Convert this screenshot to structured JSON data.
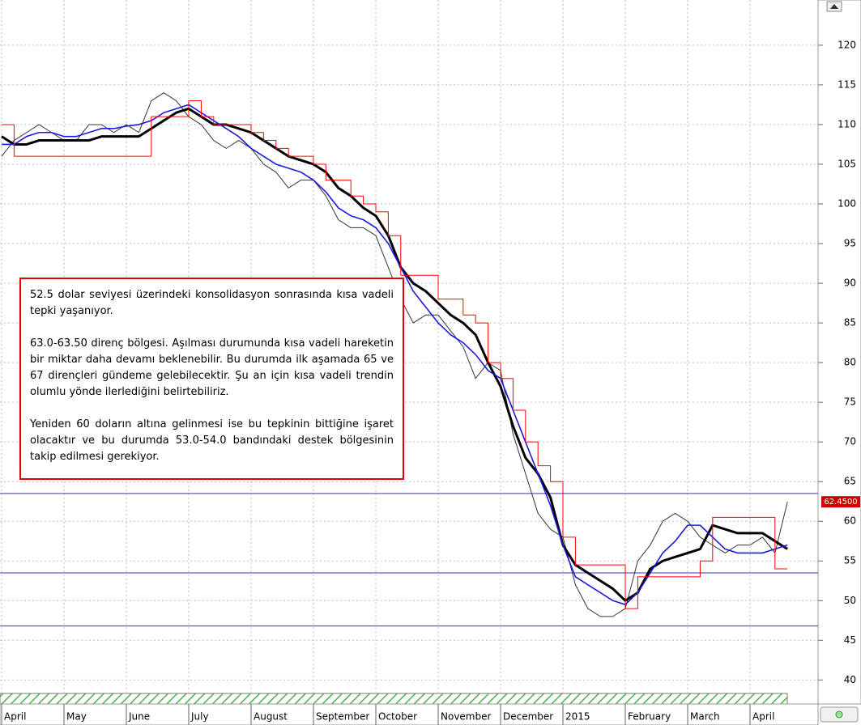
{
  "chart_data": {
    "type": "line",
    "categories": [
      "April",
      null,
      null,
      null,
      null,
      "May",
      null,
      null,
      null,
      null,
      "June",
      null,
      null,
      null,
      null,
      "July",
      null,
      null,
      null,
      null,
      "August",
      null,
      null,
      null,
      null,
      "September",
      null,
      null,
      null,
      null,
      "October",
      null,
      null,
      null,
      null,
      "November",
      null,
      null,
      null,
      null,
      "December",
      null,
      null,
      null,
      null,
      "2015",
      null,
      null,
      null,
      null,
      "February",
      null,
      null,
      null,
      null,
      "March",
      null,
      null,
      null,
      null,
      "April",
      null,
      null,
      null
    ],
    "series": [
      {
        "name": "price",
        "color": "#333333",
        "values": [
          106,
          108,
          109,
          110,
          109,
          108,
          108,
          110,
          110,
          109,
          110,
          109,
          113,
          114,
          113,
          111,
          110,
          108,
          107,
          108,
          107,
          105,
          104,
          102,
          103,
          103,
          101,
          98,
          97,
          97,
          96,
          92,
          88,
          85,
          86,
          86,
          84,
          82,
          78,
          80,
          79,
          71,
          66,
          61,
          59,
          58,
          52,
          49,
          48,
          48,
          49,
          55,
          57,
          60,
          61,
          60,
          58,
          57,
          56,
          57,
          57,
          58,
          56,
          62.45
        ]
      },
      {
        "name": "black-ma",
        "color": "#000000",
        "values": [
          108.5,
          107.5,
          107.5,
          108,
          108,
          108,
          108,
          108,
          108.5,
          108.5,
          108.5,
          108.5,
          109.5,
          110.5,
          111.5,
          112,
          111,
          110,
          110,
          109.5,
          109,
          108,
          107,
          106,
          105.5,
          105,
          104,
          102,
          101,
          99.5,
          98.5,
          96,
          92,
          90,
          89,
          87.5,
          86,
          85,
          83.5,
          80,
          77,
          72,
          68,
          66,
          63,
          57,
          54.5,
          53.5,
          52.5,
          51.5,
          50,
          51,
          54,
          55,
          55.5,
          56,
          56.5,
          59.5,
          59,
          58.5,
          58.5,
          58.5,
          57.5,
          56.5
        ]
      },
      {
        "name": "blue-ma",
        "color": "#1a1adc",
        "values": [
          107.5,
          107.5,
          108.5,
          109,
          109,
          108.5,
          108.5,
          109,
          109.5,
          109.5,
          109.8,
          110,
          110.5,
          111.5,
          112,
          112.5,
          111.5,
          110.5,
          109.5,
          108.5,
          107,
          106,
          105,
          104.5,
          104,
          103,
          101.5,
          99.5,
          98.5,
          98,
          97,
          95,
          92,
          89,
          87,
          85,
          83.5,
          82.5,
          81,
          79,
          78,
          74,
          70,
          66,
          62,
          57,
          53,
          52,
          51,
          50,
          49.5,
          51,
          53.5,
          56,
          57.5,
          59.5,
          59.5,
          58,
          56.5,
          56,
          56,
          56,
          56.5,
          57
        ]
      },
      {
        "name": "red-stop",
        "color": "#ff0000",
        "values": [
          110,
          106,
          106,
          106,
          106,
          106,
          106,
          106,
          106,
          106,
          106,
          106,
          111,
          111,
          111,
          113,
          111,
          110,
          110,
          110,
          109,
          108,
          107,
          106,
          106,
          105,
          103,
          103,
          101,
          100,
          99,
          96,
          91,
          91,
          91,
          88,
          88,
          86,
          85,
          80,
          78,
          74,
          70,
          67,
          65,
          58,
          54.5,
          54.5,
          54.5,
          54.5,
          49,
          53,
          53,
          53,
          53,
          53,
          55,
          60.5,
          60.5,
          60.5,
          60.5,
          60.5,
          54,
          54
        ]
      }
    ],
    "hlines": [
      63.5,
      53.5,
      46.8
    ],
    "hline_color": "#3333cc",
    "price_marker": {
      "value": 62.45,
      "label": "62.4500"
    },
    "ylim": [
      38.3,
      125.7
    ],
    "yticks": [
      40,
      45,
      50,
      55,
      60,
      65,
      70,
      75,
      80,
      85,
      90,
      95,
      100,
      105,
      110,
      115,
      120
    ],
    "grid": true,
    "annotation": [
      "52.5 dolar seviyesi üzerindeki konsolidasyon sonrasında kısa vadeli tepki yaşanıyor.",
      "63.0-63.50 direnç bölgesi. Aşılması durumunda kısa vadeli hareketin bir miktar daha devamı beklenebilir. Bu durumda ilk aşamada 65 ve 67 dirençleri gündeme gelebilecektir. Şu an için kısa vadeli trendin olumlu yönde ilerlediğini belirtebiliriz.",
      "Yeniden 60 doların altına gelinmesi ise bu tepkinin bittiğine işaret olacaktır ve bu durumda 53.0-54.0 bandındaki destek bölgesinin takip edilmesi gerekiyor."
    ]
  }
}
